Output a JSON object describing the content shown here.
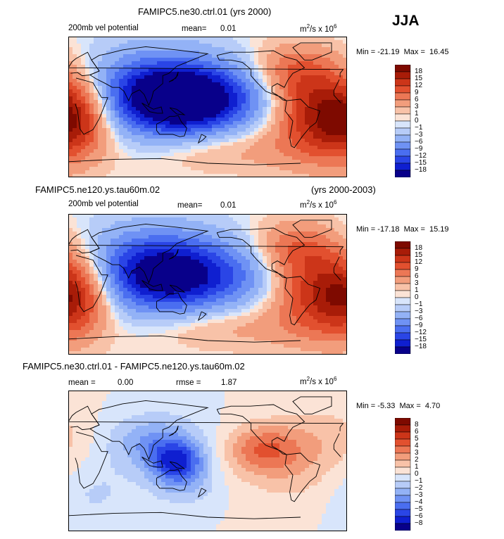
{
  "season": "JJA",
  "colors": {
    "scale": [
      "#08008a",
      "#0f1fd0",
      "#2a45e6",
      "#4a6ef0",
      "#6f92f4",
      "#93b2f6",
      "#b7ccf8",
      "#d8e5fb",
      "#fbe3d6",
      "#f8c2a8",
      "#f29d7c",
      "#ec7755",
      "#e2502f",
      "#cc3519",
      "#a81c08",
      "#7e0a00"
    ]
  },
  "chart_data": [
    {
      "type": "heatmap",
      "title": "FAMIPC5.ne30.ctrl.01 (yrs 2000)",
      "title_left": "",
      "title_right": "",
      "variable": "200mb vel potential",
      "stat1_label": "mean=",
      "stat1_value": "0.01",
      "stat2_label": "",
      "stat2_value": "",
      "units_prefix": "m",
      "units_mid": "/s x 10",
      "units_sup1": "2",
      "units_sup2": "6",
      "min_label": "Min =",
      "min_value": "-21.19",
      "max_label": "Max =",
      "max_value": "16.45",
      "colorbar_levels": [
        "18",
        "15",
        "12",
        "9",
        "6",
        "3",
        "1",
        "0",
        "-1",
        "-3",
        "-6",
        "-9",
        "-12",
        "-15",
        "-18"
      ],
      "features": [
        {
          "lon": 150,
          "lat": 8,
          "value": -20,
          "sx": 55,
          "sy": 30
        },
        {
          "lon": 110,
          "lat": 20,
          "value": -12,
          "sx": 70,
          "sy": 38
        },
        {
          "lon": 240,
          "lat": 15,
          "value": -4,
          "sx": 40,
          "sy": 30
        },
        {
          "lon": 330,
          "lat": -12,
          "value": 17,
          "sx": 45,
          "sy": 40
        },
        {
          "lon": 12,
          "lat": -12,
          "value": 10,
          "sx": 30,
          "sy": 35
        },
        {
          "lon": 290,
          "lat": 45,
          "value": 8,
          "sx": 40,
          "sy": 25
        },
        {
          "lon": 200,
          "lat": -55,
          "value": 4,
          "sx": 70,
          "sy": 20
        }
      ]
    },
    {
      "type": "heatmap",
      "title": "",
      "title_left": "FAMIPC5.ne120.ys.tau60m.02",
      "title_right": "(yrs 2000-2003)",
      "variable": "200mb vel potential",
      "stat1_label": "mean=",
      "stat1_value": "0.01",
      "stat2_label": "",
      "stat2_value": "",
      "units_prefix": "m",
      "units_mid": "/s x 10",
      "units_sup1": "2",
      "units_sup2": "6",
      "min_label": "Min =",
      "min_value": "-17.18",
      "max_label": "Max =",
      "max_value": "15.19",
      "colorbar_levels": [
        "18",
        "15",
        "12",
        "9",
        "6",
        "3",
        "1",
        "0",
        "-1",
        "-3",
        "-6",
        "-9",
        "-12",
        "-15",
        "-18"
      ],
      "features": [
        {
          "lon": 140,
          "lat": 10,
          "value": -16,
          "sx": 60,
          "sy": 32
        },
        {
          "lon": 100,
          "lat": 22,
          "value": -9,
          "sx": 70,
          "sy": 38
        },
        {
          "lon": 240,
          "lat": 15,
          "value": -4,
          "sx": 40,
          "sy": 30
        },
        {
          "lon": 330,
          "lat": -12,
          "value": 15,
          "sx": 45,
          "sy": 40
        },
        {
          "lon": 12,
          "lat": -12,
          "value": 10,
          "sx": 30,
          "sy": 35
        },
        {
          "lon": 290,
          "lat": 45,
          "value": 8,
          "sx": 40,
          "sy": 25
        },
        {
          "lon": 200,
          "lat": -55,
          "value": 4,
          "sx": 70,
          "sy": 20
        }
      ]
    },
    {
      "type": "heatmap",
      "title": "",
      "title_left": "FAMIPC5.ne30.ctrl.01 - FAMIPC5.ne120.ys.tau60m.02",
      "title_right": "",
      "variable": "",
      "stat1_label": "mean =",
      "stat1_value": "0.00",
      "stat2_label": "rmse =",
      "stat2_value": "1.87",
      "units_prefix": "m",
      "units_mid": "/s x 10",
      "units_sup1": "2",
      "units_sup2": "6",
      "min_label": "Min =",
      "min_value": "-5.33",
      "max_label": "Max =",
      "max_value": "4.70",
      "colorbar_levels": [
        "8",
        "6",
        "5",
        "4",
        "3",
        "2",
        "1",
        "0",
        "-1",
        "-2",
        "-3",
        "-4",
        "-5",
        "-6",
        "-8"
      ],
      "features": [
        {
          "lon": 140,
          "lat": 0,
          "value": -5,
          "sx": 25,
          "sy": 18
        },
        {
          "lon": 110,
          "lat": 25,
          "value": -3,
          "sx": 45,
          "sy": 25
        },
        {
          "lon": 150,
          "lat": -30,
          "value": -2,
          "sx": 30,
          "sy": 20
        },
        {
          "lon": 250,
          "lat": 15,
          "value": 3.5,
          "sx": 35,
          "sy": 22
        },
        {
          "lon": 330,
          "lat": 30,
          "value": 1.5,
          "sx": 50,
          "sy": 30
        },
        {
          "lon": 290,
          "lat": -20,
          "value": 1.2,
          "sx": 50,
          "sy": 30
        },
        {
          "lon": 30,
          "lat": -40,
          "value": -1.2,
          "sx": 40,
          "sy": 30
        }
      ]
    }
  ]
}
